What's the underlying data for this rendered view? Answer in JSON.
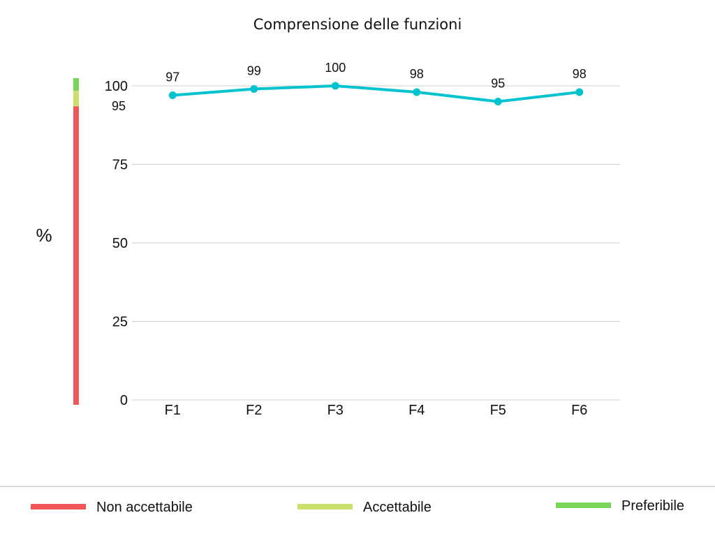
{
  "colors": {
    "line": "#00c3cf",
    "grid": "#cfcfcf",
    "not_acceptable": "#f25656",
    "acceptable": "#c9e06a",
    "preferable": "#77d657",
    "divider": "#d9d9d9"
  },
  "chart_data": {
    "type": "line",
    "title": "Comprensione delle funzioni",
    "ylabel": "%",
    "xlabel": "",
    "categories": [
      "F1",
      "F2",
      "F3",
      "F4",
      "F5",
      "F6"
    ],
    "series": [
      {
        "values": [
          97,
          99,
          100,
          98,
          95,
          98
        ]
      }
    ],
    "ylim": [
      0,
      100
    ],
    "yticks": [
      0,
      25,
      50,
      75,
      100
    ],
    "grid": true,
    "threshold_label": "95",
    "threshold_bands": [
      {
        "name": "Non accettabile",
        "from": 0,
        "to": 95,
        "color": "#f25656"
      },
      {
        "name": "Accettabile",
        "from": 95,
        "to": 100,
        "color": "#c9e06a"
      },
      {
        "name": "Preferibile",
        "from": 100,
        "to": 102.5,
        "color": "#77d657"
      }
    ],
    "legend": {
      "position": "bottom",
      "items": [
        {
          "label": "Non accettabile",
          "color": "#f25656"
        },
        {
          "label": "Accettabile",
          "color": "#c9e06a"
        },
        {
          "label": "Preferibile",
          "color": "#77d657"
        }
      ]
    }
  }
}
